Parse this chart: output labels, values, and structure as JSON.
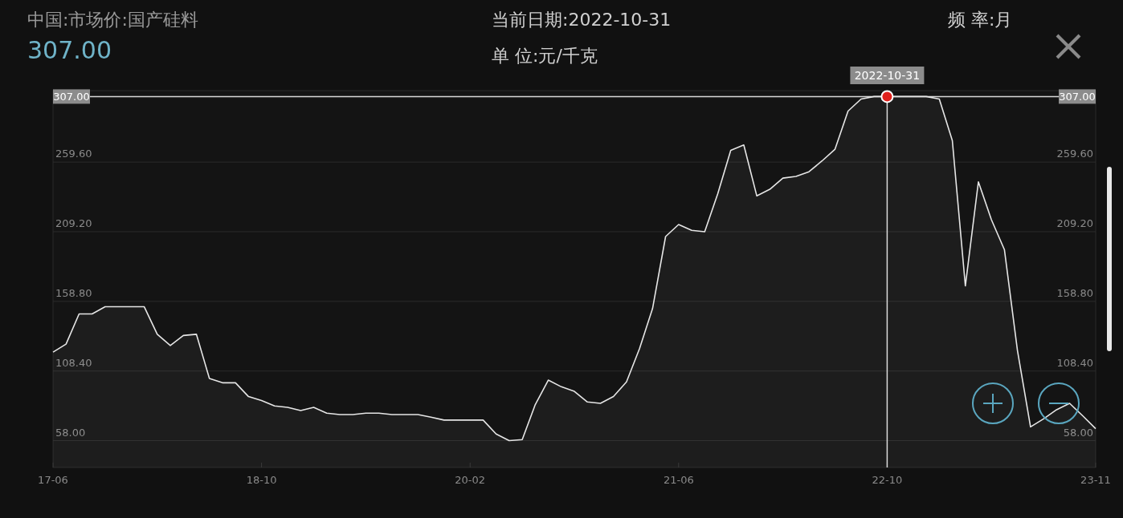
{
  "chart_data": {
    "type": "area",
    "title": "中国:市场价:国产硅料",
    "subtitle": "307.00",
    "annotations": [
      "当前日期:2022-10-31",
      "频      率:月",
      "单      位:元/千克"
    ],
    "categories": [
      "17-06",
      null,
      null,
      null,
      null,
      null,
      null,
      null,
      null,
      null,
      null,
      null,
      null,
      null,
      null,
      null,
      "18-10",
      null,
      null,
      null,
      null,
      null,
      null,
      null,
      null,
      null,
      null,
      null,
      null,
      null,
      null,
      null,
      "20-02",
      null,
      null,
      null,
      null,
      null,
      null,
      null,
      null,
      null,
      null,
      null,
      null,
      null,
      null,
      null,
      "21-06",
      null,
      null,
      null,
      null,
      null,
      null,
      null,
      null,
      null,
      null,
      null,
      null,
      null,
      null,
      null,
      "22-10",
      null,
      null,
      null,
      null,
      null,
      null,
      null,
      null,
      null,
      null,
      null,
      null,
      null,
      null,
      null,
      "23-11"
    ],
    "series": [
      {
        "color": "#e6e6e6",
        "values": [
          122.1,
          127.9,
          149.7,
          149.7,
          154.9,
          154.9,
          154.9,
          154.9,
          135.0,
          126.9,
          134.1,
          135.0,
          103.0,
          99.9,
          99.9,
          89.9,
          87.0,
          83.1,
          82.1,
          79.8,
          82.1,
          77.9,
          76.9,
          76.9,
          77.9,
          77.9,
          76.9,
          76.9,
          76.9,
          75.0,
          72.9,
          72.9,
          72.9,
          72.9,
          62.8,
          58.0,
          58.8,
          84.1,
          101.8,
          97.0,
          93.7,
          86.0,
          85.0,
          89.9,
          100.5,
          124.6,
          153.6,
          205.7,
          214.4,
          210.2,
          209.2,
          236.6,
          268.1,
          272.0,
          235.1,
          239.9,
          248.0,
          249.2,
          252.6,
          260.4,
          268.9,
          296.5,
          305.2,
          307,
          307,
          307,
          307,
          307,
          305.2,
          275.2,
          170.0,
          245.3,
          217.9,
          196.1,
          123.1,
          68.0,
          73.8,
          80.4,
          85.0,
          76.0,
          66.7
        ]
      }
    ],
    "ylim": [
      38.6,
      311.3
    ],
    "yticks": [
      {
        "value": 58,
        "label": "58.00"
      },
      {
        "value": 108.4,
        "label": "108.40"
      },
      {
        "value": 158.8,
        "label": "158.80"
      },
      {
        "value": 209.2,
        "label": "209.20"
      },
      {
        "value": 259.6,
        "label": "259.60"
      }
    ],
    "y2lim": [
      38.6,
      311.3
    ],
    "y2ticks": [
      {
        "value": 58,
        "label": "58.00"
      },
      {
        "value": 108.4,
        "label": "108.40"
      },
      {
        "value": 158.8,
        "label": "158.80"
      },
      {
        "value": 209.2,
        "label": "209.20"
      },
      {
        "value": 259.6,
        "label": "259.60"
      }
    ],
    "grid": "y",
    "ref_lines": [
      {
        "axis": "y",
        "value": 307,
        "label": "307.00",
        "color": "#d9d9d9"
      },
      {
        "axis": "x",
        "value": "22-10",
        "label": "2022-10-31",
        "color": "#d9d9d9"
      }
    ]
  }
}
